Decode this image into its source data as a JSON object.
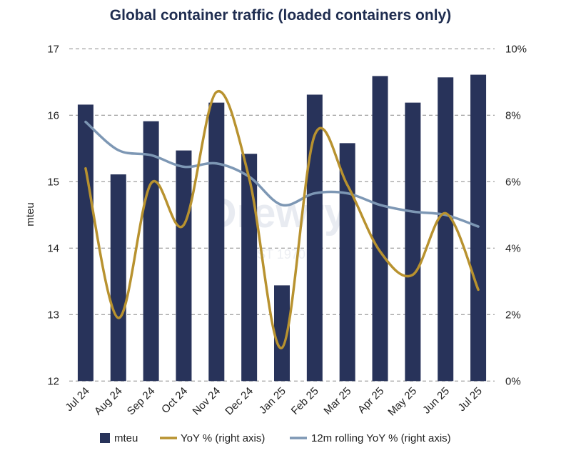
{
  "chart_data": {
    "type": "bar+line",
    "title": "Global container traffic (loaded containers only)",
    "ylabel": "mteu",
    "ylabel_right": "",
    "categories": [
      "Jul 24",
      "Aug 24",
      "Sep 24",
      "Oct 24",
      "Nov 24",
      "Dec 24",
      "Jan 25",
      "Feb 25",
      "Mar 25",
      "Apr 25",
      "May 25",
      "Jun 25",
      "Jul 25"
    ],
    "ylim": [
      12,
      17
    ],
    "yticks": [
      "12",
      "13",
      "14",
      "15",
      "16",
      "17"
    ],
    "ylim_right": [
      0,
      10
    ],
    "yticks_right": [
      "0%",
      "2%",
      "4%",
      "6%",
      "8%",
      "10%"
    ],
    "grid": "horizontal dashed",
    "legend_position": "bottom",
    "series": [
      {
        "name": "mteu",
        "type": "bar",
        "axis": "left",
        "color": "#28335a",
        "values": [
          16.16,
          15.11,
          15.91,
          15.47,
          16.19,
          15.42,
          13.44,
          16.31,
          15.58,
          16.59,
          16.19,
          16.57,
          16.61
        ]
      },
      {
        "name": "YoY % (right axis)",
        "type": "line",
        "axis": "right",
        "color": "#b8922f",
        "values": [
          6.4,
          1.9,
          5.95,
          4.7,
          8.7,
          6.1,
          1.0,
          7.4,
          5.9,
          3.9,
          3.2,
          5.05,
          2.75
        ]
      },
      {
        "name": "12m rolling YoY % (right axis)",
        "type": "line",
        "axis": "right",
        "color": "#7d97b4",
        "values": [
          7.8,
          6.95,
          6.8,
          6.45,
          6.55,
          6.15,
          5.3,
          5.65,
          5.65,
          5.3,
          5.1,
          5.0,
          4.65
        ]
      }
    ]
  },
  "watermark": {
    "text": "Drewry",
    "sub": "EST 1970"
  }
}
